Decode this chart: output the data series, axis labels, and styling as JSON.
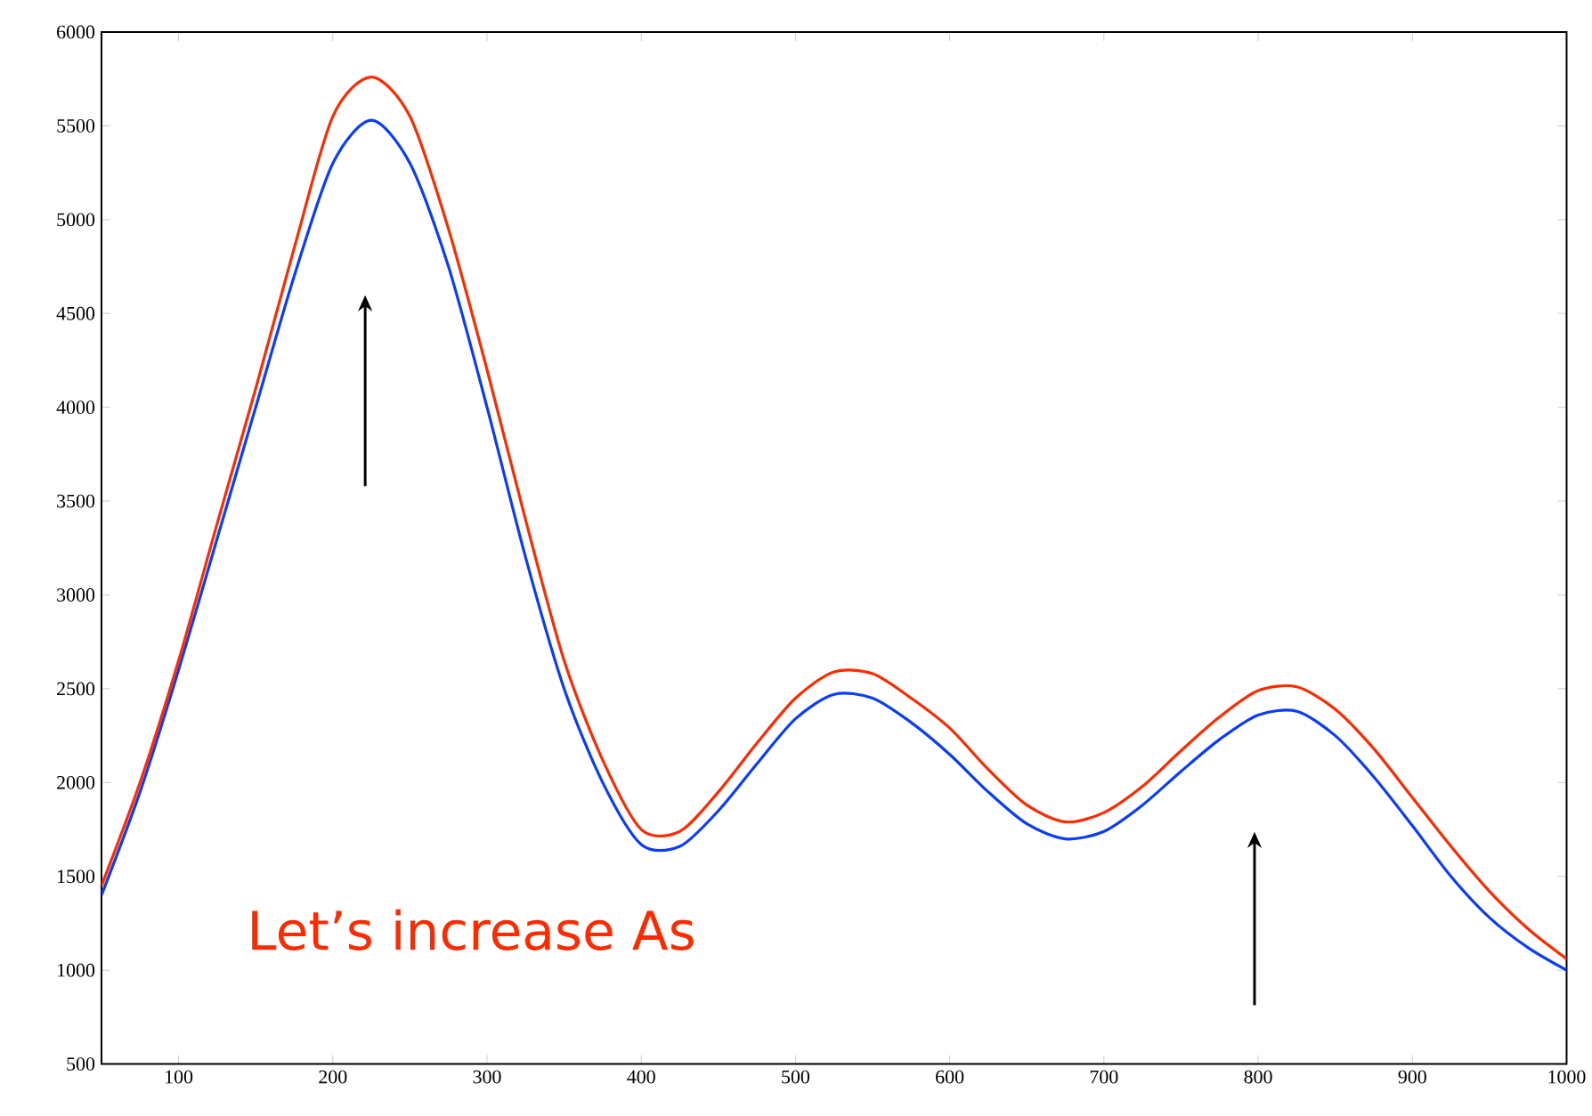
{
  "chart_data": {
    "type": "line",
    "xlim": [
      50,
      1000
    ],
    "ylim": [
      500,
      6000
    ],
    "xticks": [
      100,
      200,
      300,
      400,
      500,
      600,
      700,
      800,
      900,
      1000
    ],
    "yticks": [
      500,
      1000,
      1500,
      2000,
      2500,
      3000,
      3500,
      4000,
      4500,
      5000,
      5500,
      6000
    ],
    "marker": "none",
    "line_style": "solid",
    "annotations": [
      "Let’s increase As"
    ],
    "series": [
      {
        "color": "#0a3cff",
        "x": [
          50,
          75,
          100,
          125,
          150,
          175,
          200,
          225,
          250,
          275,
          300,
          325,
          350,
          375,
          400,
          425,
          450,
          475,
          500,
          525,
          550,
          575,
          600,
          625,
          650,
          675,
          700,
          725,
          750,
          775,
          800,
          825,
          850,
          875,
          900,
          925,
          950,
          975,
          1000
        ],
        "values": [
          1400,
          1950,
          2600,
          3300,
          4000,
          4700,
          5300,
          5530,
          5300,
          4750,
          4000,
          3200,
          2500,
          2000,
          1670,
          1660,
          1850,
          2100,
          2340,
          2470,
          2450,
          2320,
          2150,
          1950,
          1780,
          1700,
          1740,
          1880,
          2060,
          2230,
          2360,
          2380,
          2250,
          2030,
          1770,
          1500,
          1280,
          1120,
          1000
        ]
      },
      {
        "color": "#ff2a00",
        "x": [
          50,
          75,
          100,
          125,
          150,
          175,
          200,
          225,
          250,
          275,
          300,
          325,
          350,
          375,
          400,
          425,
          450,
          475,
          500,
          525,
          550,
          575,
          600,
          625,
          650,
          675,
          700,
          725,
          750,
          775,
          800,
          825,
          850,
          875,
          900,
          925,
          950,
          975,
          1000
        ],
        "values": [
          1450,
          2000,
          2650,
          3380,
          4100,
          4850,
          5550,
          5760,
          5550,
          4950,
          4200,
          3400,
          2650,
          2120,
          1750,
          1740,
          1950,
          2210,
          2450,
          2590,
          2580,
          2450,
          2290,
          2070,
          1880,
          1790,
          1840,
          1980,
          2170,
          2350,
          2490,
          2510,
          2390,
          2180,
          1920,
          1660,
          1420,
          1220,
          1060
        ]
      }
    ]
  }
}
